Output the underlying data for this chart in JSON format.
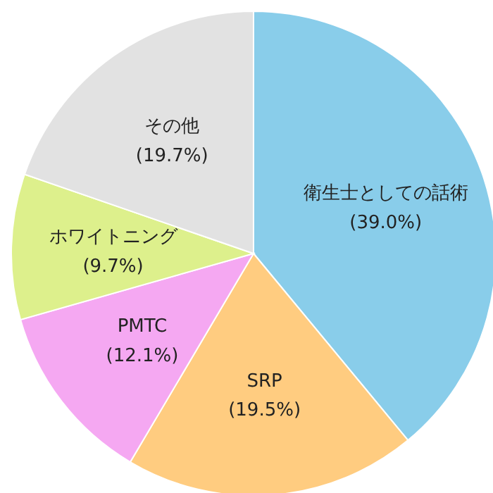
{
  "chart_data": {
    "type": "pie",
    "categories": [
      "衛生士としての話術",
      "SRP",
      "PMTC",
      "ホワイトニング",
      "その他"
    ],
    "values": [
      39.0,
      19.5,
      12.1,
      9.7,
      19.7
    ],
    "colors": [
      "#89cdea",
      "#ffcc80",
      "#f5a8f2",
      "#ddf08c",
      "#e2e2e2"
    ],
    "value_labels": [
      "(39.0%)",
      "(19.5%)",
      "(12.1%)",
      "(9.7%)",
      "(19.7%)"
    ],
    "legend": false
  }
}
